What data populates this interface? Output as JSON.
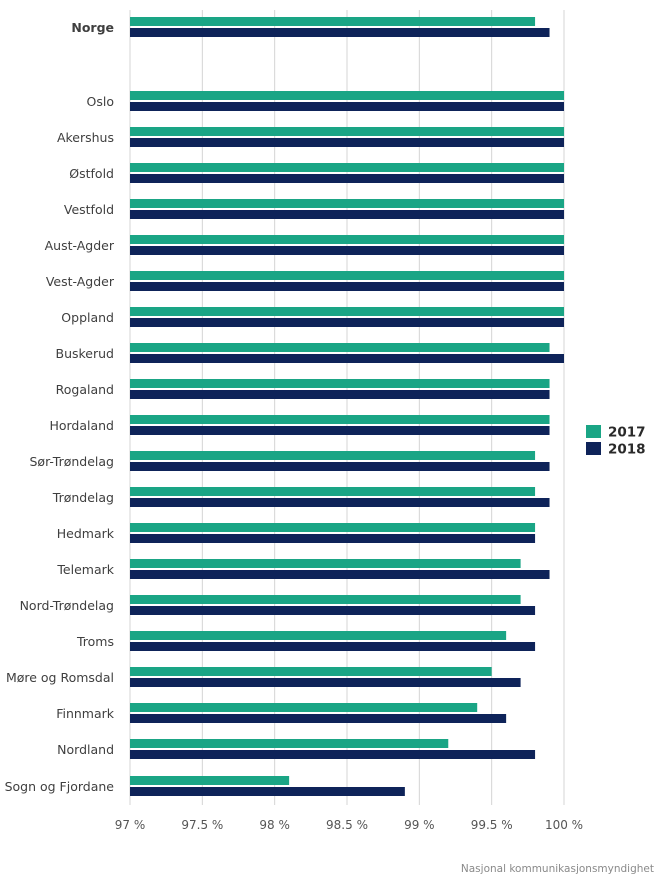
{
  "chart_data": {
    "type": "bar",
    "orientation": "horizontal",
    "categories": [
      "Norge",
      "Oslo",
      "Akershus",
      "Østfold",
      "Vestfold",
      "Aust-Agder",
      "Vest-Agder",
      "Oppland",
      "Buskerud",
      "Rogaland",
      "Hordaland",
      "Sør-Trøndelag",
      "Trøndelag",
      "Hedmark",
      "Telemark",
      "Nord-Trøndelag",
      "Troms",
      "Møre og Romsdal",
      "Finnmark",
      "Nordland",
      "Sogn og Fjordane"
    ],
    "series": [
      {
        "name": "2017",
        "color": "#1aa585",
        "values": [
          99.8,
          100,
          100,
          100,
          100,
          100,
          100,
          100,
          99.9,
          99.9,
          99.9,
          99.8,
          99.8,
          99.8,
          99.7,
          99.7,
          99.6,
          99.5,
          99.4,
          99.2,
          98.1
        ]
      },
      {
        "name": "2018",
        "color": "#0e2359",
        "values": [
          99.9,
          100,
          100,
          100,
          100,
          100,
          100,
          100,
          100,
          99.9,
          99.9,
          99.9,
          99.9,
          99.8,
          99.9,
          99.8,
          99.8,
          99.7,
          99.6,
          99.8,
          98.9
        ]
      }
    ],
    "xlim": [
      97,
      100
    ],
    "xticks": [
      97,
      97.5,
      98,
      98.5,
      99,
      99.5,
      100
    ],
    "xtick_labels": [
      "97 %",
      "97.5 %",
      "98 %",
      "98.5 %",
      "99 %",
      "99.5 %",
      "100 %"
    ],
    "grid": true,
    "legend_position": "right",
    "title": "",
    "xlabel": "",
    "ylabel": ""
  },
  "source": "Nasjonal kommunikasjonsmyndighet"
}
